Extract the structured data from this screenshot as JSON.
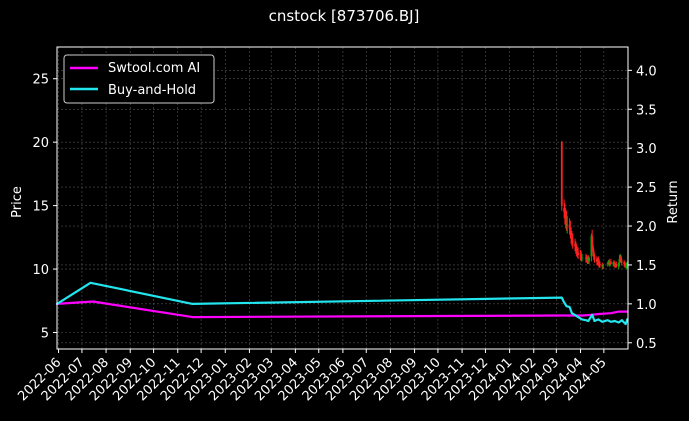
{
  "chart_data": {
    "type": "line",
    "title": "cnstock [873706.BJ]",
    "xlabel": "",
    "ylabel": "Price",
    "y2label": "Return",
    "ylim": [
      3.7,
      27.5
    ],
    "y2lim": [
      0.42,
      4.3
    ],
    "grid": true,
    "legend_position": "top-left",
    "background": "#000000",
    "left_ticks": [
      "5",
      "10",
      "15",
      "20",
      "25"
    ],
    "right_ticks": [
      "0.5",
      "1.0",
      "1.5",
      "2.0",
      "2.5",
      "3.0",
      "3.5",
      "4.0"
    ],
    "x_ticks": [
      "2022-06",
      "2022-07",
      "2022-08",
      "2022-09",
      "2022-10",
      "2022-11",
      "2022-12",
      "2023-01",
      "2023-02",
      "2023-03",
      "2023-04",
      "2023-05",
      "2023-06",
      "2023-07",
      "2023-08",
      "2023-09",
      "2023-10",
      "2023-11",
      "2023-12",
      "2024-01",
      "2024-02",
      "2024-03",
      "2024-04",
      "2024-05"
    ],
    "xlim": [
      "2022-05-30",
      "2024-06-01"
    ],
    "series": [
      {
        "name": "Swtool.com AI",
        "color": "#ff00ff",
        "axis": "right",
        "x": [
          "2022-05-30",
          "2022-07-15",
          "2022-11-20",
          "2024-03-08",
          "2024-04-05",
          "2024-04-15",
          "2024-04-25",
          "2024-05-10",
          "2024-05-20",
          "2024-05-31"
        ],
        "values": [
          1.0,
          1.03,
          0.83,
          0.85,
          0.85,
          0.86,
          0.87,
          0.88,
          0.9,
          0.9
        ]
      },
      {
        "name": "Buy-and-Hold",
        "color": "#22e5ee",
        "axis": "right",
        "x": [
          "2022-05-30",
          "2022-07-12",
          "2022-11-20",
          "2024-03-08",
          "2024-03-11",
          "2024-03-14",
          "2024-03-18",
          "2024-03-21",
          "2024-03-26",
          "2024-03-29",
          "2024-04-03",
          "2024-04-08",
          "2024-04-11",
          "2024-04-16",
          "2024-04-19",
          "2024-04-24",
          "2024-04-29",
          "2024-05-06",
          "2024-05-10",
          "2024-05-15",
          "2024-05-20",
          "2024-05-24",
          "2024-05-29",
          "2024-05-31"
        ],
        "values": [
          1.0,
          1.27,
          1.0,
          1.08,
          1.02,
          0.97,
          0.96,
          0.88,
          0.85,
          0.83,
          0.8,
          0.79,
          0.78,
          0.86,
          0.78,
          0.8,
          0.77,
          0.79,
          0.77,
          0.78,
          0.76,
          0.79,
          0.74,
          0.8
        ]
      }
    ],
    "candles": {
      "up_color": "#00aa00",
      "down_color": "#ff2020",
      "axis": "left",
      "dates": [
        "2024-03-08",
        "2024-03-11",
        "2024-03-12",
        "2024-03-13",
        "2024-03-14",
        "2024-03-15",
        "2024-03-18",
        "2024-03-19",
        "2024-03-20",
        "2024-03-21",
        "2024-03-22",
        "2024-03-25",
        "2024-03-26",
        "2024-03-27",
        "2024-03-28",
        "2024-03-29",
        "2024-04-01",
        "2024-04-02",
        "2024-04-03",
        "2024-04-08",
        "2024-04-09",
        "2024-04-10",
        "2024-04-11",
        "2024-04-12",
        "2024-04-15",
        "2024-04-16",
        "2024-04-17",
        "2024-04-18",
        "2024-04-19",
        "2024-04-22",
        "2024-04-23",
        "2024-04-24",
        "2024-04-25",
        "2024-04-26",
        "2024-04-29",
        "2024-04-30",
        "2024-05-06",
        "2024-05-07",
        "2024-05-08",
        "2024-05-09",
        "2024-05-10",
        "2024-05-13",
        "2024-05-14",
        "2024-05-15",
        "2024-05-16",
        "2024-05-17",
        "2024-05-20",
        "2024-05-21",
        "2024-05-22",
        "2024-05-23",
        "2024-05-24",
        "2024-05-27",
        "2024-05-28",
        "2024-05-29",
        "2024-05-30",
        "2024-05-31"
      ],
      "open": [
        20.0,
        14.8,
        14.5,
        14.0,
        13.8,
        13.5,
        13.5,
        13.2,
        12.8,
        12.5,
        12.3,
        12.0,
        11.8,
        11.6,
        11.4,
        11.3,
        11.1,
        11.0,
        10.9,
        10.9,
        10.8,
        10.7,
        10.8,
        10.6,
        11.0,
        12.6,
        11.8,
        11.4,
        11.0,
        10.8,
        10.6,
        10.7,
        10.5,
        10.4,
        10.3,
        10.2,
        10.4,
        10.5,
        10.5,
        10.4,
        10.6,
        10.4,
        10.5,
        10.4,
        10.3,
        10.4,
        10.2,
        10.5,
        10.8,
        11.0,
        10.6,
        10.5,
        10.4,
        10.3,
        10.2,
        10.3
      ],
      "high": [
        20.1,
        15.5,
        15.2,
        14.8,
        14.6,
        14.2,
        14.0,
        13.8,
        13.3,
        13.0,
        12.8,
        12.4,
        12.2,
        12.0,
        11.8,
        11.7,
        11.5,
        11.4,
        11.2,
        11.2,
        11.1,
        11.0,
        11.1,
        11.0,
        12.8,
        13.1,
        12.0,
        11.6,
        11.2,
        11.0,
        10.9,
        11.0,
        10.8,
        10.6,
        10.5,
        10.4,
        10.6,
        10.7,
        10.8,
        10.6,
        10.8,
        10.6,
        10.7,
        10.6,
        10.5,
        10.6,
        10.5,
        11.1,
        11.2,
        11.1,
        10.8,
        10.7,
        10.6,
        10.5,
        10.5,
        10.6
      ],
      "low": [
        14.6,
        14.0,
        13.5,
        13.2,
        13.0,
        12.8,
        12.7,
        12.4,
        12.0,
        11.8,
        11.6,
        11.4,
        11.2,
        11.0,
        10.9,
        10.8,
        10.7,
        10.6,
        10.6,
        10.5,
        10.5,
        10.4,
        10.4,
        10.4,
        10.6,
        11.4,
        11.0,
        10.7,
        10.5,
        10.3,
        10.3,
        10.2,
        10.1,
        10.1,
        10.0,
        10.0,
        10.2,
        10.3,
        10.2,
        10.2,
        10.3,
        10.2,
        10.2,
        10.1,
        10.1,
        10.1,
        10.0,
        10.2,
        10.5,
        10.5,
        10.3,
        10.2,
        10.1,
        10.1,
        10.0,
        10.1
      ],
      "close": [
        15.0,
        14.5,
        14.0,
        13.8,
        13.5,
        13.5,
        13.2,
        12.8,
        12.5,
        12.3,
        12.0,
        11.8,
        11.6,
        11.4,
        11.3,
        11.1,
        11.0,
        10.9,
        10.9,
        10.8,
        10.7,
        10.8,
        10.6,
        10.9,
        12.6,
        11.8,
        11.4,
        11.0,
        10.8,
        10.6,
        10.7,
        10.5,
        10.4,
        10.3,
        10.2,
        10.3,
        10.5,
        10.5,
        10.4,
        10.6,
        10.4,
        10.5,
        10.4,
        10.3,
        10.4,
        10.2,
        10.5,
        10.8,
        11.0,
        10.6,
        10.5,
        10.4,
        10.3,
        10.2,
        10.3,
        10.4
      ]
    }
  }
}
